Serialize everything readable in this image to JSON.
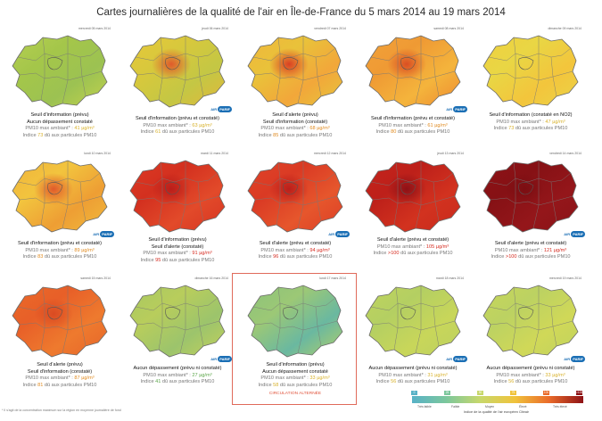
{
  "title": "Cartes journalières de la qualité de l'air en Île-de-France du 5 mars 2014 au 19 mars 2014",
  "panels": [
    {
      "date": "mercredi 05 mars 2014",
      "fill": [
        "#b6cf52",
        "#a4c64a",
        "#9cc252",
        "#c3d24c"
      ],
      "hot": null,
      "l1": "Seuil d'information (prévu)",
      "l2": "Aucun dépassement constaté",
      "pm_label": "PM10 max ambiant* : ",
      "pm": "41 µg/m³",
      "idx_label": "Indice ",
      "idx": "73",
      "idx_rest": " dû aux particules PM10",
      "hl": "yellow",
      "logo": false
    },
    {
      "date": "jeudi 06 mars 2014",
      "fill": [
        "#e7c93a",
        "#d8c83c",
        "#c4c744",
        "#e2b83a"
      ],
      "hot": "#e0552a",
      "l1": "Seuil d'information (prévu et constaté)",
      "l2": "",
      "pm_label": "PM10 max ambiant* : ",
      "pm": "63 µg/m³",
      "idx_label": "Indice ",
      "idx": "61",
      "idx_rest": " dû aux particules PM10",
      "hl": "yellow",
      "logo": true
    },
    {
      "date": "vendredi 07 mars 2014",
      "fill": [
        "#f1b63c",
        "#e9c23a",
        "#f2a73a",
        "#e5c63c"
      ],
      "hot": "#d93a22",
      "l1": "Seuil d'alerte (prévu)",
      "l2": "Seuil d'information (constaté)",
      "pm_label": "PM10 max ambiant* : ",
      "pm": "68 µg/m³",
      "idx_label": "Indice ",
      "idx": "85",
      "idx_rest": " dû aux particules PM10",
      "hl": "",
      "logo": false
    },
    {
      "date": "samedi 08 mars 2014",
      "fill": [
        "#f2a23a",
        "#ef9a34",
        "#f4b43c",
        "#ee8a30"
      ],
      "hot": "#d94a22",
      "l1": "Seuil d'information (prévu et constaté)",
      "l2": "",
      "pm_label": "PM10 max ambiant* : ",
      "pm": "61 µg/m³",
      "idx_label": "Indice ",
      "idx": "80",
      "idx_rest": " dû aux particules PM10",
      "hl": "",
      "logo": true
    },
    {
      "date": "dimanche 09 mars 2014",
      "fill": [
        "#f0d040",
        "#e9d644",
        "#f3c53c",
        "#ead448"
      ],
      "hot": null,
      "l1": "Seuil d'information (constaté en NO2)",
      "l2": "",
      "pm_label": "PM10 max ambiant* : ",
      "pm": "47 µg/m³",
      "idx_label": "Indice ",
      "idx": "73",
      "idx_rest": " dû aux particules PM10",
      "hl": "yellow",
      "logo": false
    },
    {
      "date": "lundi 10 mars 2014",
      "fill": [
        "#f0b33c",
        "#f2c43e",
        "#ee9e34",
        "#f0bb3c"
      ],
      "hot": "#e0552a",
      "l1": "Seuil d'information (prévu et constaté)",
      "l2": "",
      "pm_label": "PM10 max ambiant* : ",
      "pm": "89 µg/m³",
      "idx_label": "Indice ",
      "idx": "83",
      "idx_rest": " dû aux particules PM10",
      "hl": "",
      "logo": true
    },
    {
      "date": "mardi 11 mars 2014",
      "fill": [
        "#dd3a24",
        "#d3301f",
        "#e24a2a",
        "#d63422"
      ],
      "hot": "#b81d1a",
      "l1": "Seuil d'information (prévu)",
      "l2": "Seuil d'alerte (constaté)",
      "pm_label": "PM10 max ambiant* : ",
      "pm": "91 µg/m³",
      "idx_label": "Indice ",
      "idx": "95",
      "idx_rest": " dû aux particules PM10",
      "hl": "red",
      "logo": false
    },
    {
      "date": "mercredi 12 mars 2014",
      "fill": [
        "#e04428",
        "#da3a24",
        "#e6562c",
        "#dc3e26"
      ],
      "hot": "#b81d1a",
      "l1": "Seuil d'alerte (prévu et constaté)",
      "l2": "",
      "pm_label": "PM10 max ambiant* : ",
      "pm": "94 µg/m³",
      "idx_label": "Indice ",
      "idx": "96",
      "idx_rest": " dû aux particules PM10",
      "hl": "red",
      "logo": true
    },
    {
      "date": "jeudi 13 mars 2014",
      "fill": [
        "#c5241c",
        "#bd201a",
        "#d2321f",
        "#c82a1d"
      ],
      "hot": "#8a1016",
      "l1": "Seuil d'alerte (prévu et constaté)",
      "l2": "",
      "pm_label": "PM10 max ambiant* : ",
      "pm": "105 µg/m³",
      "idx_label": "Indice ",
      "idx": ">100",
      "idx_rest": " dû aux particules PM10",
      "hl": "red",
      "logo": false
    },
    {
      "date": "vendredi 14 mars 2014",
      "fill": [
        "#8e1216",
        "#861115",
        "#94161a",
        "#8a1317"
      ],
      "hot": "#7a0e12",
      "l1": "Seuil d'alerte (prévu et constaté)",
      "l2": "",
      "pm_label": "PM10 max ambiant* : ",
      "pm": "121 µg/m³",
      "idx_label": "Indice ",
      "idx": ">100",
      "idx_rest": " dû aux particules PM10",
      "hl": "red",
      "logo": true
    },
    {
      "date": "samedi 15 mars 2014",
      "fill": [
        "#ea6b2a",
        "#e85f28",
        "#ee7a2e",
        "#e6652a"
      ],
      "hot": "#d94a22",
      "l1": "Seuil d'alerte (prévu)",
      "l2": "Seuil d'information (constaté)",
      "pm_label": "PM10 max ambiant* : ",
      "pm": "87 µg/m³",
      "idx_label": "Indice ",
      "idx": "81",
      "idx_rest": " dû aux particules PM10",
      "hl": "",
      "logo": false
    },
    {
      "date": "dimanche 16 mars 2014",
      "fill": [
        "#a8c862",
        "#b8cd5c",
        "#9cc46c",
        "#c4d15a"
      ],
      "hot": null,
      "l1": "Aucun dépassement (prévu ni constaté)",
      "l2": "",
      "pm_label": "PM10 max ambiant* : ",
      "pm": "27 µg/m³",
      "idx_label": "Indice ",
      "idx": "41",
      "idx_rest": " dû aux particules PM10",
      "hl": "green",
      "logo": true
    },
    {
      "date": "lundi 17 mars 2014",
      "fill": [
        "#8cc27a",
        "#9cc876",
        "#6ab8a0",
        "#b4cf66"
      ],
      "hot": null,
      "l1": "Seuil d'information (prévu)",
      "l2": "Aucun dépassement constaté",
      "pm_label": "PM10 max ambiant* : ",
      "pm": "33 µg/m³",
      "idx_label": "Indice ",
      "idx": "58",
      "idx_rest": " dû aux particules PM10",
      "hl": "yellow",
      "logo": false,
      "circ": "CIRCULATION ALTERNÉE"
    },
    {
      "date": "mardi 18 mars 2014",
      "fill": [
        "#c0d45e",
        "#b4cf62",
        "#c8d65a",
        "#bcd160"
      ],
      "hot": null,
      "l1": "Aucun dépassement (prévu ni constaté)",
      "l2": "",
      "pm_label": "PM10 max ambiant* : ",
      "pm": "31 µg/m³",
      "idx_label": "Indice ",
      "idx": "56",
      "idx_rest": " dû aux particules PM10",
      "hl": "yellow",
      "logo": true
    },
    {
      "date": "mercredi 19 mars 2014",
      "fill": [
        "#c8d65a",
        "#bcd262",
        "#d0d858",
        "#c0d35e"
      ],
      "hot": null,
      "l1": "Aucun dépassement (prévu ni constaté)",
      "l2": "",
      "pm_label": "PM10 max ambiant* : ",
      "pm": "33 µg/m³",
      "idx_label": "Indice ",
      "idx": "56",
      "idx_rest": " dû aux particules PM10",
      "hl": "yellow",
      "logo": true
    }
  ],
  "logo": {
    "air": "AIR",
    "paris": "PARIF"
  },
  "footnote": "* Il s'agit de la concentration maximum sur la région en moyenne journalière de fond",
  "legend": {
    "ticks": [
      "0",
      "25",
      "50",
      "75",
      "100",
      ">100"
    ],
    "labels": [
      "Très faible",
      "Faible",
      "Moyen",
      "Élevé",
      "Très élevé"
    ],
    "caption": "Indice de la qualité de l'air européen Citeair"
  }
}
